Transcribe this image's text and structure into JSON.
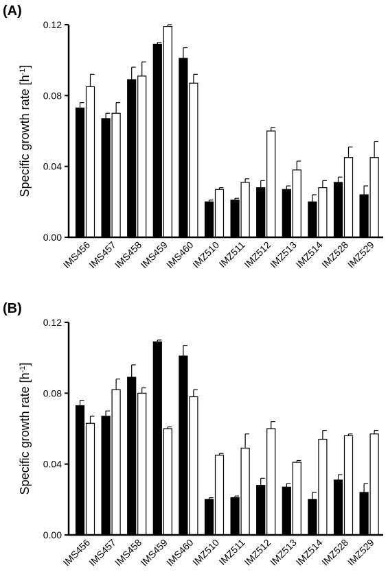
{
  "chart_data": [
    {
      "type": "bar",
      "panel_label": "(A)",
      "ylabel": "Specific growth rate [h",
      "ylabel_sup": "-1",
      "ylabel_end": "]",
      "ylim": [
        0,
        0.12
      ],
      "yticks": [
        "0.00",
        "0.04",
        "0.08",
        "0.12"
      ],
      "grid": false,
      "categories": [
        "IMS456",
        "IMS457",
        "IMS458",
        "IMS459",
        "IMS460",
        "IMZ510",
        "IMZ511",
        "IMZ512",
        "IMZ513",
        "IMZ514",
        "IMZ528",
        "IMZ529"
      ],
      "series": [
        {
          "fill": "#000000",
          "values": [
            0.073,
            0.067,
            0.089,
            0.109,
            0.101,
            0.02,
            0.021,
            0.028,
            0.027,
            0.02,
            0.031,
            0.024
          ],
          "errors": [
            0.003,
            0.003,
            0.007,
            0.001,
            0.006,
            0.001,
            0.001,
            0.004,
            0.002,
            0.004,
            0.003,
            0.005
          ]
        },
        {
          "fill": "#ffffff",
          "values": [
            0.085,
            0.07,
            0.091,
            0.119,
            0.087,
            0.027,
            0.031,
            0.06,
            0.038,
            0.028,
            0.045,
            0.045
          ],
          "errors": [
            0.007,
            0.006,
            0.008,
            0.001,
            0.005,
            0.001,
            0.002,
            0.002,
            0.005,
            0.004,
            0.006,
            0.009
          ]
        }
      ]
    },
    {
      "type": "bar",
      "panel_label": "(B)",
      "ylabel": "Specific growth rate [h",
      "ylabel_sup": "-1",
      "ylabel_end": "]",
      "ylim": [
        0,
        0.12
      ],
      "yticks": [
        "0.00",
        "0.04",
        "0.08",
        "0.12"
      ],
      "grid": false,
      "categories": [
        "IMS456",
        "IMS457",
        "IMS458",
        "IMS459",
        "IMS460",
        "IMZ510",
        "IMZ511",
        "IMZ512",
        "IMZ513",
        "IMZ514",
        "IMZ528",
        "IMZ529"
      ],
      "series": [
        {
          "fill": "#000000",
          "values": [
            0.073,
            0.067,
            0.089,
            0.109,
            0.101,
            0.02,
            0.021,
            0.028,
            0.027,
            0.02,
            0.031,
            0.024
          ],
          "errors": [
            0.003,
            0.003,
            0.007,
            0.001,
            0.006,
            0.001,
            0.001,
            0.004,
            0.002,
            0.004,
            0.003,
            0.005
          ]
        },
        {
          "fill": "#ffffff",
          "values": [
            0.063,
            0.082,
            0.08,
            0.06,
            0.078,
            0.045,
            0.049,
            0.06,
            0.041,
            0.054,
            0.056,
            0.057
          ],
          "errors": [
            0.004,
            0.006,
            0.003,
            0.001,
            0.004,
            0.001,
            0.008,
            0.004,
            0.001,
            0.005,
            0.001,
            0.002
          ]
        }
      ]
    }
  ]
}
